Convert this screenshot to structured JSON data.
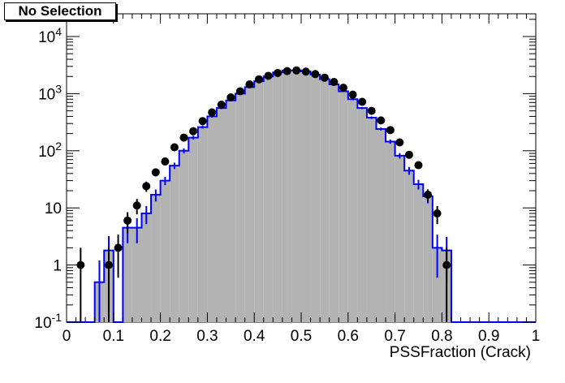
{
  "chart_data": {
    "type": "histogram",
    "title": "No Selection",
    "xlabel": "PSSFraction (Crack)",
    "ylabel": "",
    "xlim": [
      0,
      1
    ],
    "ylim": [
      0.1,
      25000
    ],
    "log_y": true,
    "bin_width": 0.02,
    "x_ticks": [
      "0",
      "0.1",
      "0.2",
      "0.3",
      "0.4",
      "0.5",
      "0.6",
      "0.7",
      "0.8",
      "0.9",
      "1"
    ],
    "y_ticks": [
      "10<sup>-1</sup>",
      "1",
      "10",
      "10<sup>2</sup>",
      "10<sup>3</sup>",
      "10<sup>4</sup>"
    ],
    "colors": {
      "fill": "#b3b3b3",
      "line": "#0000ff",
      "points": "#000000"
    },
    "series": [
      {
        "type": "step-filled",
        "bin_edges_start": 0.0,
        "values": [
          0,
          0,
          0,
          0.5,
          1.8,
          0.1,
          4.5,
          4.5,
          8,
          17,
          30,
          55,
          100,
          170,
          260,
          400,
          560,
          760,
          1000,
          1300,
          1650,
          2000,
          2350,
          2550,
          2550,
          2450,
          2150,
          1800,
          1450,
          1100,
          800,
          560,
          380,
          240,
          145,
          82,
          45,
          26,
          16,
          2,
          1.8,
          0,
          0,
          0,
          0,
          0,
          0,
          0,
          0,
          0
        ],
        "errors": [
          0,
          0,
          0,
          0.7,
          1.4,
          0,
          2.1,
          2.1,
          2.8,
          4,
          5,
          7,
          10,
          13,
          16,
          20,
          24,
          28,
          32,
          36,
          41,
          45,
          48,
          50,
          50,
          49,
          46,
          42,
          38,
          33,
          28,
          24,
          19,
          15,
          12,
          9,
          7,
          5,
          4,
          1.4,
          1.3,
          0,
          0,
          0,
          0,
          0,
          0,
          0,
          0,
          0
        ]
      },
      {
        "type": "points",
        "x": [
          0.03,
          0.09,
          0.11,
          0.13,
          0.15,
          0.17,
          0.19,
          0.21,
          0.23,
          0.25,
          0.27,
          0.29,
          0.31,
          0.33,
          0.35,
          0.37,
          0.39,
          0.41,
          0.43,
          0.45,
          0.47,
          0.49,
          0.51,
          0.53,
          0.55,
          0.57,
          0.59,
          0.61,
          0.63,
          0.65,
          0.67,
          0.69,
          0.71,
          0.73,
          0.75,
          0.77,
          0.79,
          0.81
        ],
        "y": [
          1,
          1,
          2,
          6,
          11,
          24,
          42,
          65,
          115,
          170,
          220,
          330,
          470,
          640,
          860,
          1100,
          1450,
          1780,
          2050,
          2300,
          2480,
          2550,
          2430,
          2200,
          1900,
          1600,
          1270,
          960,
          720,
          500,
          340,
          230,
          140,
          85,
          56,
          17,
          8,
          1
        ],
        "errors": [
          1,
          1,
          1.4,
          2.4,
          3.3,
          4.9,
          6.5,
          8,
          10.7,
          13,
          14.8,
          18.2,
          21.7,
          25.3,
          29.3,
          33.2,
          38.1,
          42.2,
          45.3,
          48,
          49.8,
          50.5,
          49.3,
          46.9,
          43.6,
          40,
          35.6,
          31,
          26.8,
          22.4,
          18.4,
          15.2,
          11.8,
          9.2,
          7.5,
          4.1,
          2.8,
          1
        ]
      }
    ]
  }
}
